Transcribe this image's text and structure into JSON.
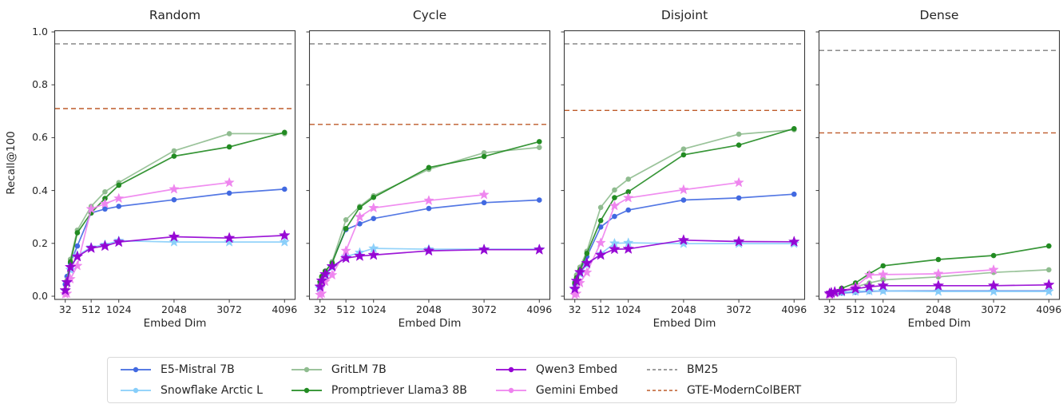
{
  "figure": {
    "ylabel": "Recall@100",
    "xlabel": "Embed Dim"
  },
  "axis": {
    "x_tick_values": [
      32,
      512,
      1024,
      2048,
      3072,
      4096
    ],
    "x_ticks": [
      "32",
      "512",
      "1024",
      "2048",
      "3072",
      "4096"
    ],
    "y_tick_values": [
      0.0,
      0.2,
      0.4,
      0.6,
      0.8,
      1.0
    ],
    "y_ticks": [
      "0.0",
      "0.2",
      "0.4",
      "0.6",
      "0.8",
      "1.0"
    ],
    "xlim": [
      -171,
      4299
    ],
    "ylim": [
      -0.012,
      1.004
    ],
    "grid": false
  },
  "colors": {
    "e5": "#4169E1",
    "snowflake": "#87CEFA",
    "gritlm": "#8FBC8F",
    "promptriever": "#228B22",
    "qwen3": "#9400D3",
    "gemini": "#EE82EE",
    "bm25": "#7F7F7F",
    "gte": "#BE5B2A",
    "spine": "#3a3a3a"
  },
  "legend": {
    "columns": [
      [
        {
          "label": "E5-Mistral 7B",
          "color": "e5",
          "style": "line-marker"
        },
        {
          "label": "Snowflake Arctic L",
          "color": "snowflake",
          "style": "line-marker"
        }
      ],
      [
        {
          "label": "GritLM 7B",
          "color": "gritlm",
          "style": "line-marker"
        },
        {
          "label": "Promptriever Llama3 8B",
          "color": "promptriever",
          "style": "line-marker"
        }
      ],
      [
        {
          "label": "Qwen3 Embed",
          "color": "qwen3",
          "style": "line-marker"
        },
        {
          "label": "Gemini Embed",
          "color": "gemini",
          "style": "line-marker"
        }
      ],
      [
        {
          "label": "BM25",
          "color": "bm25",
          "style": "dashed"
        },
        {
          "label": "GTE-ModernColBERT",
          "color": "gte",
          "style": "dashed"
        }
      ]
    ]
  },
  "chart_data": [
    {
      "type": "line",
      "title": "Random",
      "xlabel": "Embed Dim",
      "ylabel": "Recall@100",
      "x": [
        32,
        64,
        128,
        256,
        512,
        768,
        1024,
        2048,
        3072,
        4096
      ],
      "series": [
        {
          "name": "E5-Mistral 7B",
          "color": "e5",
          "marker": "circle",
          "values": [
            0.045,
            0.075,
            0.125,
            0.19,
            0.315,
            0.33,
            0.34,
            0.365,
            0.39,
            0.405
          ]
        },
        {
          "name": "Snowflake Arctic L",
          "color": "snowflake",
          "marker": "star",
          "values": [
            0.02,
            0.05,
            0.1,
            0.155,
            0.185,
            0.195,
            0.21,
            0.205,
            0.205,
            0.205
          ]
        },
        {
          "name": "GritLM 7B",
          "color": "gritlm",
          "marker": "circle",
          "values": [
            0.025,
            0.06,
            0.14,
            0.25,
            0.34,
            0.395,
            0.43,
            0.55,
            0.615,
            0.615
          ]
        },
        {
          "name": "Promptriever Llama3 8B",
          "color": "promptriever",
          "marker": "circle",
          "values": [
            0.02,
            0.05,
            0.13,
            0.24,
            0.315,
            0.37,
            0.42,
            0.53,
            0.565,
            0.62
          ]
        },
        {
          "name": "Gemini Embed",
          "color": "gemini",
          "marker": "star",
          "values": [
            0.008,
            0.01,
            0.065,
            0.115,
            0.33,
            0.35,
            0.37,
            0.405,
            0.43,
            null
          ]
        },
        {
          "name": "Qwen3 Embed",
          "color": "qwen3",
          "marker": "star",
          "values": [
            0.022,
            0.053,
            0.11,
            0.15,
            0.182,
            0.19,
            0.205,
            0.225,
            0.22,
            0.23
          ]
        }
      ],
      "baselines": [
        {
          "name": "BM25",
          "color": "bm25",
          "value": 0.955
        },
        {
          "name": "GTE-ModernColBERT",
          "color": "gte",
          "value": 0.71
        }
      ]
    },
    {
      "type": "line",
      "title": "Cycle",
      "xlabel": "Embed Dim",
      "ylabel": "Recall@100",
      "x": [
        32,
        64,
        128,
        256,
        512,
        768,
        1024,
        2048,
        3072,
        4096
      ],
      "series": [
        {
          "name": "E5-Mistral 7B",
          "color": "e5",
          "marker": "circle",
          "values": [
            0.045,
            0.06,
            0.09,
            0.13,
            0.252,
            0.274,
            0.294,
            0.332,
            0.354,
            0.364
          ]
        },
        {
          "name": "Snowflake Arctic L",
          "color": "snowflake",
          "marker": "star",
          "values": [
            0.03,
            0.05,
            0.075,
            0.11,
            0.15,
            0.165,
            0.181,
            0.178,
            0.178,
            0.178
          ]
        },
        {
          "name": "GritLM 7B",
          "color": "gritlm",
          "marker": "circle",
          "values": [
            0.05,
            0.07,
            0.09,
            0.13,
            0.289,
            0.34,
            0.38,
            0.48,
            0.543,
            0.563
          ]
        },
        {
          "name": "Promptriever Llama3 8B",
          "color": "promptriever",
          "marker": "circle",
          "values": [
            0.055,
            0.075,
            0.095,
            0.125,
            0.256,
            0.336,
            0.374,
            0.487,
            0.529,
            0.585
          ]
        },
        {
          "name": "Gemini Embed",
          "color": "gemini",
          "marker": "star",
          "values": [
            0.005,
            0.01,
            0.055,
            0.08,
            0.172,
            0.3,
            0.334,
            0.362,
            0.384,
            null
          ]
        },
        {
          "name": "Qwen3 Embed",
          "color": "qwen3",
          "marker": "star",
          "values": [
            0.036,
            0.059,
            0.083,
            0.113,
            0.144,
            0.152,
            0.156,
            0.172,
            0.176,
            0.176
          ]
        }
      ],
      "baselines": [
        {
          "name": "BM25",
          "color": "bm25",
          "value": 0.955
        },
        {
          "name": "GTE-ModernColBERT",
          "color": "gte",
          "value": 0.65
        }
      ]
    },
    {
      "type": "line",
      "title": "Disjoint",
      "xlabel": "Embed Dim",
      "ylabel": "Recall@100",
      "x": [
        32,
        64,
        128,
        256,
        512,
        768,
        1024,
        2048,
        3072,
        4096
      ],
      "series": [
        {
          "name": "E5-Mistral 7B",
          "color": "e5",
          "marker": "circle",
          "values": [
            0.045,
            0.065,
            0.095,
            0.15,
            0.262,
            0.302,
            0.326,
            0.364,
            0.372,
            0.386
          ]
        },
        {
          "name": "Snowflake Arctic L",
          "color": "snowflake",
          "marker": "star",
          "values": [
            0.025,
            0.05,
            0.085,
            0.12,
            0.16,
            0.2,
            0.202,
            0.199,
            0.199,
            0.199
          ]
        },
        {
          "name": "GritLM 7B",
          "color": "gritlm",
          "marker": "circle",
          "values": [
            0.05,
            0.08,
            0.11,
            0.17,
            0.336,
            0.402,
            0.443,
            0.557,
            0.613,
            0.63
          ]
        },
        {
          "name": "Promptriever Llama3 8B",
          "color": "promptriever",
          "marker": "circle",
          "values": [
            0.05,
            0.07,
            0.1,
            0.162,
            0.286,
            0.373,
            0.395,
            0.535,
            0.572,
            0.634
          ]
        },
        {
          "name": "Gemini Embed",
          "color": "gemini",
          "marker": "star",
          "values": [
            0.005,
            0.01,
            0.05,
            0.09,
            0.202,
            0.342,
            0.372,
            0.403,
            0.43,
            null
          ]
        },
        {
          "name": "Qwen3 Embed",
          "color": "qwen3",
          "marker": "star",
          "values": [
            0.028,
            0.058,
            0.091,
            0.125,
            0.156,
            0.178,
            0.179,
            0.212,
            0.207,
            0.206
          ]
        }
      ],
      "baselines": [
        {
          "name": "BM25",
          "color": "bm25",
          "value": 0.955
        },
        {
          "name": "GTE-ModernColBERT",
          "color": "gte",
          "value": 0.703
        }
      ]
    },
    {
      "type": "line",
      "title": "Dense",
      "xlabel": "Embed Dim",
      "ylabel": "Recall@100",
      "x": [
        32,
        64,
        128,
        256,
        512,
        768,
        1024,
        2048,
        3072,
        4096
      ],
      "series": [
        {
          "name": "E5-Mistral 7B",
          "color": "e5",
          "marker": "circle",
          "values": [
            0.005,
            0.007,
            0.01,
            0.012,
            0.015,
            0.018,
            0.02,
            0.02,
            0.02,
            0.02
          ]
        },
        {
          "name": "Snowflake Arctic L",
          "color": "snowflake",
          "marker": "star",
          "values": [
            0.008,
            0.01,
            0.012,
            0.015,
            0.018,
            0.02,
            0.02,
            0.018,
            0.018,
            0.018
          ]
        },
        {
          "name": "GritLM 7B",
          "color": "gritlm",
          "marker": "circle",
          "values": [
            0.007,
            0.009,
            0.012,
            0.02,
            0.035,
            0.05,
            0.062,
            0.073,
            0.09,
            0.1
          ]
        },
        {
          "name": "Promptriever Llama3 8B",
          "color": "promptriever",
          "marker": "circle",
          "values": [
            0.008,
            0.01,
            0.015,
            0.03,
            0.05,
            0.085,
            0.115,
            0.139,
            0.154,
            0.19
          ]
        },
        {
          "name": "Gemini Embed",
          "color": "gemini",
          "marker": "star",
          "values": [
            0.005,
            0.008,
            0.012,
            0.02,
            0.035,
            0.08,
            0.082,
            0.085,
            0.1,
            null
          ]
        },
        {
          "name": "Qwen3 Embed",
          "color": "qwen3",
          "marker": "star",
          "values": [
            0.01,
            0.013,
            0.016,
            0.02,
            0.028,
            0.036,
            0.04,
            0.04,
            0.04,
            0.043
          ]
        }
      ],
      "baselines": [
        {
          "name": "BM25",
          "color": "bm25",
          "value": 0.93
        },
        {
          "name": "GTE-ModernColBERT",
          "color": "gte",
          "value": 0.618
        }
      ]
    }
  ]
}
